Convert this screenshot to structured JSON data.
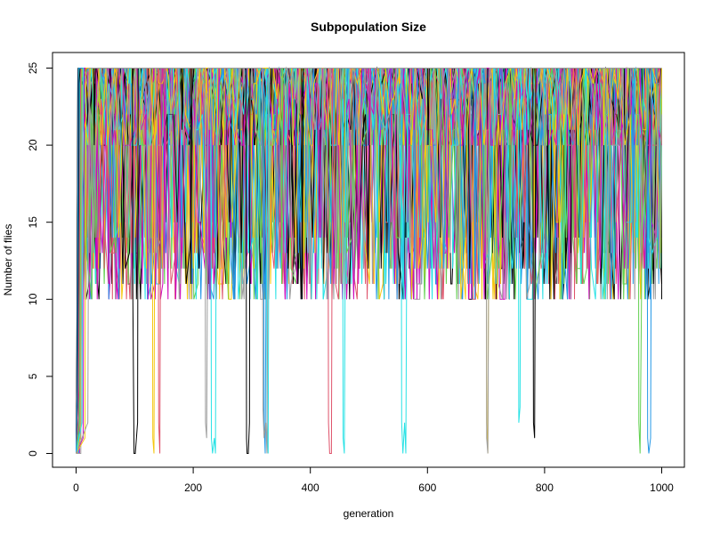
{
  "chart_data": {
    "type": "line",
    "title": "Subpopulation Size",
    "xlabel": "generation",
    "ylabel": "Number of flies",
    "xlim": [
      0,
      1000
    ],
    "ylim": [
      0,
      25
    ],
    "x_ticks": [
      0,
      200,
      400,
      600,
      800,
      1000
    ],
    "y_ticks": [
      0,
      5,
      10,
      15,
      20,
      25
    ],
    "x_tick_labels": [
      "0",
      "200",
      "400",
      "600",
      "800",
      "1000"
    ],
    "y_tick_labels": [
      "0",
      "5",
      "10",
      "15",
      "20",
      "25"
    ],
    "grid": false,
    "legend": "none",
    "palette": [
      "#000000",
      "#df536b",
      "#61d04f",
      "#2297e6",
      "#28e2e5",
      "#cd0bbc",
      "#f5c710",
      "#9e9e9e"
    ],
    "series": [
      {
        "color": "#000000",
        "points": [
          [
            0,
            0
          ],
          [
            3,
            2
          ],
          [
            5,
            24
          ],
          [
            7,
            25
          ],
          [
            30,
            25
          ],
          [
            31,
            20
          ],
          [
            33,
            25
          ],
          [
            96,
            25
          ],
          [
            97,
            10
          ],
          [
            99,
            0
          ],
          [
            101,
            0
          ],
          [
            103,
            1
          ],
          [
            105,
            2
          ],
          [
            106,
            25
          ],
          [
            180,
            25
          ],
          [
            181,
            21
          ],
          [
            183,
            25
          ],
          [
            195,
            25
          ],
          [
            196,
            11
          ],
          [
            198,
            25
          ],
          [
            290,
            25
          ],
          [
            291,
            1
          ],
          [
            292,
            0
          ],
          [
            294,
            0
          ],
          [
            296,
            2
          ],
          [
            297,
            25
          ],
          [
            385,
            25
          ],
          [
            386,
            10
          ],
          [
            388,
            25
          ],
          [
            600,
            25
          ],
          [
            601,
            20
          ],
          [
            603,
            25
          ],
          [
            700,
            25
          ],
          [
            701,
            21
          ],
          [
            703,
            25
          ],
          [
            780,
            25
          ],
          [
            781,
            2
          ],
          [
            783,
            1
          ],
          [
            785,
            25
          ],
          [
            1000,
            25
          ]
        ]
      },
      {
        "color": "#df536b",
        "points": [
          [
            0,
            0
          ],
          [
            4,
            3
          ],
          [
            6,
            15
          ],
          [
            8,
            25
          ],
          [
            140,
            25
          ],
          [
            141,
            2
          ],
          [
            143,
            0
          ],
          [
            145,
            25
          ],
          [
            430,
            25
          ],
          [
            431,
            2
          ],
          [
            433,
            0
          ],
          [
            436,
            0
          ],
          [
            438,
            25
          ],
          [
            850,
            25
          ],
          [
            851,
            10
          ],
          [
            853,
            25
          ],
          [
            1000,
            25
          ]
        ]
      },
      {
        "color": "#61d04f",
        "points": [
          [
            0,
            0
          ],
          [
            6,
            2
          ],
          [
            8,
            20
          ],
          [
            10,
            25
          ],
          [
            350,
            25
          ],
          [
            351,
            11
          ],
          [
            353,
            25
          ],
          [
            740,
            25
          ],
          [
            741,
            11
          ],
          [
            743,
            25
          ],
          [
            960,
            25
          ],
          [
            961,
            2
          ],
          [
            963,
            0
          ],
          [
            966,
            12
          ],
          [
            968,
            25
          ],
          [
            1000,
            25
          ]
        ]
      },
      {
        "color": "#2297e6",
        "points": [
          [
            0,
            0
          ],
          [
            2,
            4
          ],
          [
            4,
            25
          ],
          [
            320,
            25
          ],
          [
            321,
            2
          ],
          [
            323,
            0
          ],
          [
            326,
            25
          ],
          [
            680,
            25
          ],
          [
            681,
            10
          ],
          [
            683,
            25
          ],
          [
            950,
            25
          ],
          [
            951,
            11
          ],
          [
            953,
            25
          ],
          [
            975,
            25
          ],
          [
            976,
            1
          ],
          [
            978,
            0
          ],
          [
            981,
            1
          ],
          [
            983,
            25
          ],
          [
            1000,
            25
          ]
        ]
      },
      {
        "color": "#28e2e5",
        "points": [
          [
            0,
            0
          ],
          [
            10,
            2
          ],
          [
            12,
            25
          ],
          [
            230,
            25
          ],
          [
            231,
            1
          ],
          [
            233,
            0
          ],
          [
            236,
            1
          ],
          [
            238,
            0
          ],
          [
            240,
            25
          ],
          [
            325,
            25
          ],
          [
            326,
            2
          ],
          [
            328,
            0
          ],
          [
            330,
            25
          ],
          [
            455,
            25
          ],
          [
            456,
            1
          ],
          [
            458,
            0
          ],
          [
            461,
            25
          ],
          [
            555,
            25
          ],
          [
            556,
            2
          ],
          [
            558,
            0
          ],
          [
            561,
            2
          ],
          [
            563,
            0
          ],
          [
            566,
            25
          ],
          [
            755,
            25
          ],
          [
            756,
            2
          ],
          [
            758,
            3
          ],
          [
            760,
            25
          ],
          [
            1000,
            25
          ]
        ]
      },
      {
        "color": "#cd0bbc",
        "points": [
          [
            0,
            0
          ],
          [
            12,
            1
          ],
          [
            14,
            25
          ],
          [
            150,
            25
          ],
          [
            151,
            12
          ],
          [
            153,
            25
          ],
          [
            500,
            25
          ],
          [
            501,
            20
          ],
          [
            503,
            25
          ],
          [
            1000,
            25
          ]
        ]
      },
      {
        "color": "#f5c710",
        "points": [
          [
            0,
            0
          ],
          [
            15,
            1
          ],
          [
            17,
            25
          ],
          [
            130,
            25
          ],
          [
            131,
            1
          ],
          [
            133,
            0
          ],
          [
            135,
            25
          ],
          [
            700,
            25
          ],
          [
            701,
            2
          ],
          [
            703,
            0
          ],
          [
            706,
            25
          ],
          [
            900,
            25
          ],
          [
            901,
            20
          ],
          [
            903,
            25
          ],
          [
            1000,
            25
          ]
        ]
      },
      {
        "color": "#9e9e9e",
        "points": [
          [
            0,
            0
          ],
          [
            20,
            2
          ],
          [
            22,
            25
          ],
          [
            220,
            25
          ],
          [
            221,
            2
          ],
          [
            223,
            1
          ],
          [
            226,
            25
          ],
          [
            318,
            25
          ],
          [
            319,
            3
          ],
          [
            321,
            1
          ],
          [
            324,
            2
          ],
          [
            326,
            0
          ],
          [
            329,
            25
          ],
          [
            420,
            25
          ],
          [
            421,
            12
          ],
          [
            423,
            25
          ],
          [
            700,
            25
          ],
          [
            701,
            1
          ],
          [
            703,
            0
          ],
          [
            706,
            25
          ],
          [
            1000,
            25
          ]
        ]
      }
    ]
  }
}
